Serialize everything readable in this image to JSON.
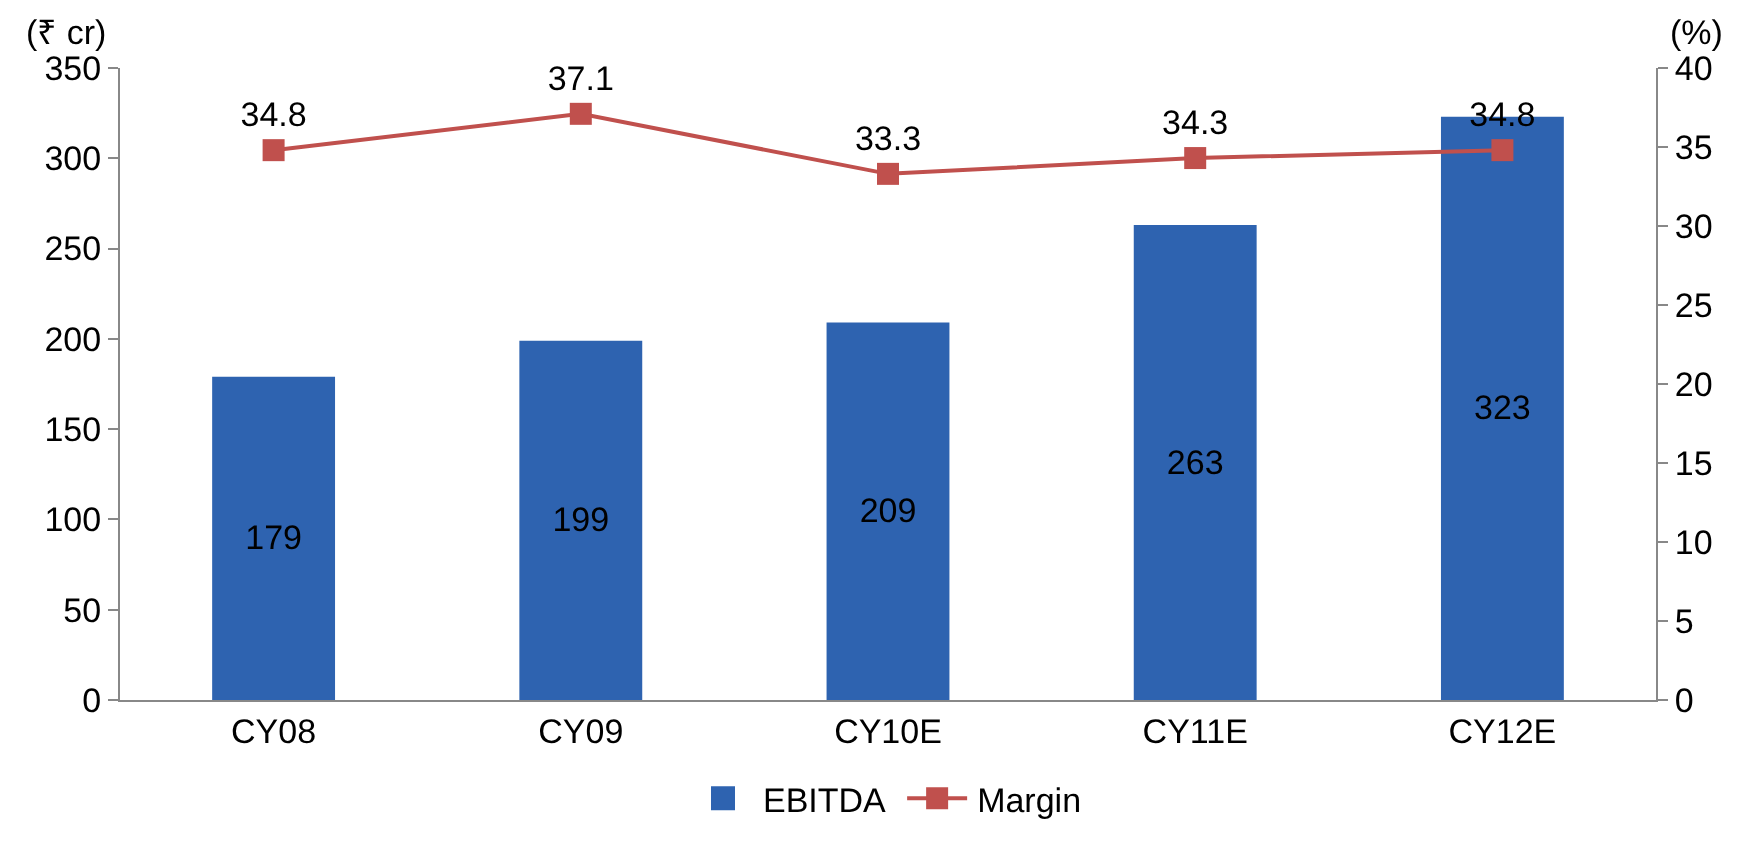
{
  "chart_data": {
    "type": "bar",
    "ylabel": "(₹ cr)",
    "y2label": "(%)",
    "categories": [
      "CY08",
      "CY09",
      "CY10E",
      "CY11E",
      "CY12E"
    ],
    "series": [
      {
        "name": "EBITDA",
        "color": "#2e63b0",
        "values": [
          179,
          199,
          209,
          263,
          323
        ]
      },
      {
        "name": "Margin",
        "type": "line",
        "axis": "y2",
        "color": "#c0504d",
        "marker": "square",
        "values": [
          34.8,
          37.1,
          33.3,
          34.3,
          34.8
        ]
      }
    ],
    "ylim": [
      0,
      350
    ],
    "yticks": [
      0,
      50,
      100,
      150,
      200,
      250,
      300,
      350
    ],
    "y2lim": [
      0,
      40
    ],
    "y2ticks": [
      0,
      5,
      10,
      15,
      20,
      25,
      30,
      35,
      40
    ],
    "data_labels": true,
    "grid": false,
    "legend": "bottom"
  }
}
